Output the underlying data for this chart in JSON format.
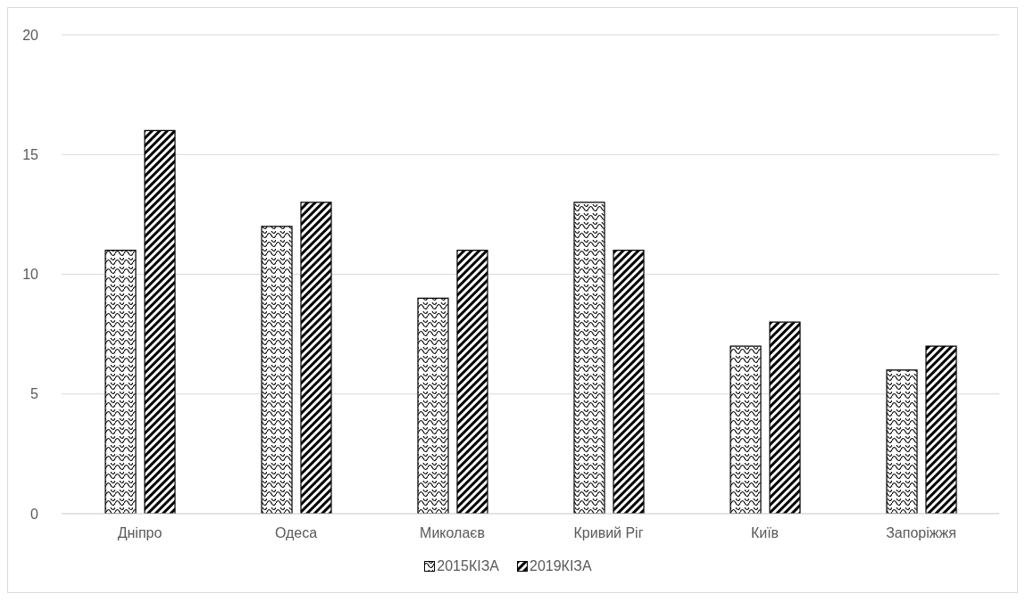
{
  "chart_data": {
    "type": "bar",
    "categories": [
      "Дніпро",
      "Одеса",
      "Миколаєв",
      "Кривий Ріг",
      "Київ",
      "Запоріжжя"
    ],
    "series": [
      {
        "name": "2015КІЗА",
        "color": "#000000",
        "values": [
          11,
          12,
          9,
          13,
          7,
          6
        ]
      },
      {
        "name": "2019КІЗА",
        "color": "#000000",
        "values": [
          16,
          13,
          11,
          11,
          8,
          7
        ]
      }
    ],
    "ylim": [
      0,
      20
    ],
    "yticks": [
      0,
      5,
      10,
      15,
      20
    ],
    "grid": "y",
    "legend": "bottom"
  }
}
